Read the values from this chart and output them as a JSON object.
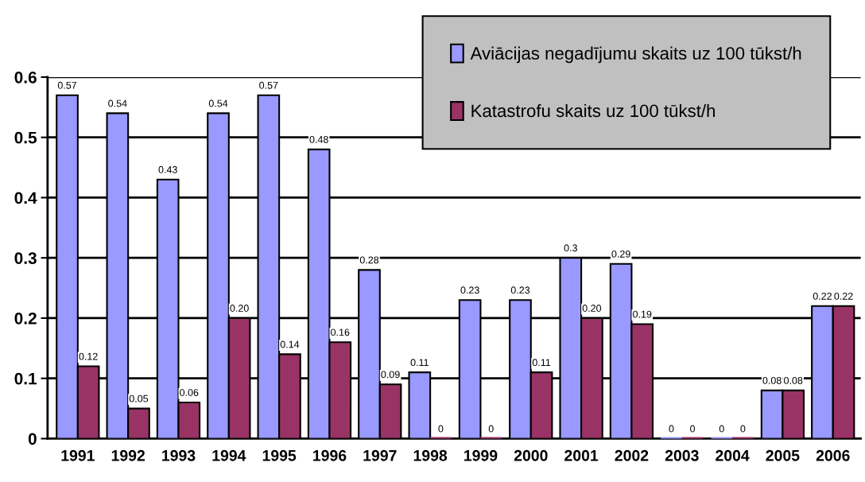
{
  "chart_data": {
    "type": "bar",
    "categories": [
      "1991",
      "1992",
      "1993",
      "1994",
      "1995",
      "1996",
      "1997",
      "1998",
      "1999",
      "2000",
      "2001",
      "2002",
      "2003",
      "2004",
      "2005",
      "2006"
    ],
    "series": [
      {
        "name": "Aviācijas negadījumu skaits uz 100 tūkst/h",
        "color": "#9999ff",
        "values": [
          0.57,
          0.54,
          0.43,
          0.54,
          0.57,
          0.48,
          0.28,
          0.11,
          0.23,
          0.23,
          0.3,
          0.29,
          0,
          0,
          0.08,
          0.22
        ],
        "value_labels": [
          "0.57",
          "0.54",
          "0.43",
          "0.54",
          "0.57",
          "0.48",
          "0.28",
          "0.11",
          "0.23",
          "0.23",
          "0.3",
          "0.29",
          "0",
          "0",
          "0.08",
          "0.22"
        ]
      },
      {
        "name": "Katastrofu skaits uz 100 tūkst/h",
        "color": "#993366",
        "values": [
          0.12,
          0.05,
          0.06,
          0.2,
          0.14,
          0.16,
          0.09,
          0,
          0,
          0.11,
          0.2,
          0.19,
          0,
          0,
          0.08,
          0.22
        ],
        "value_labels": [
          "0.12",
          "0.05",
          "0.06",
          "0.20",
          "0.14",
          "0.16",
          "0.09",
          "0",
          "0",
          "0.11",
          "0.20",
          "0.19",
          "0",
          "0",
          "0.08",
          "0.22"
        ]
      }
    ],
    "ylim": [
      0,
      0.6
    ],
    "yticks": [
      0,
      0.1,
      0.2,
      0.3,
      0.4,
      0.5,
      0.6
    ],
    "grid": "y",
    "legend": "top right"
  }
}
